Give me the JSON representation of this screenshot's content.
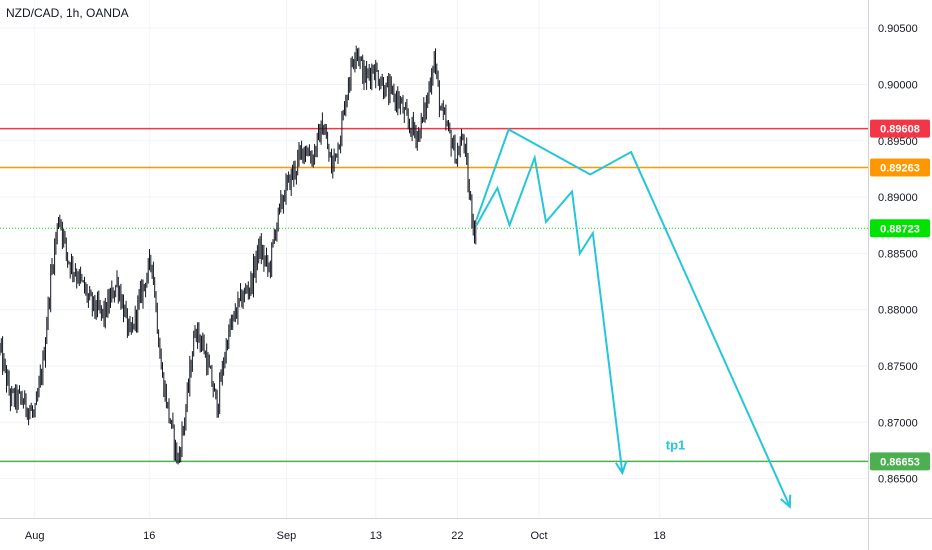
{
  "symbol_title": "NZD/CAD, 1h, OANDA",
  "chart_data": {
    "type": "candlestick",
    "title": "NZD/CAD, 1h, OANDA",
    "ylim": [
      0.8615,
      0.9075
    ],
    "y_ticks": [
      0.865,
      0.87,
      0.875,
      0.88,
      0.885,
      0.89,
      0.895,
      0.9,
      0.905
    ],
    "y_tick_labels": [
      "0.86500",
      "0.87000",
      "0.87500",
      "0.88000",
      "0.88500",
      "0.89000",
      "0.89500",
      "0.90000",
      "0.90500"
    ],
    "x_ticks": [
      {
        "label": "Aug",
        "frac": 0.04
      },
      {
        "label": "16",
        "frac": 0.172
      },
      {
        "label": "Sep",
        "frac": 0.33
      },
      {
        "label": "13",
        "frac": 0.433
      },
      {
        "label": "22",
        "frac": 0.527
      },
      {
        "label": "Oct",
        "frac": 0.621
      },
      {
        "label": "18",
        "frac": 0.76
      }
    ],
    "price_path": [
      [
        0.0,
        0.8765
      ],
      [
        0.012,
        0.8722
      ],
      [
        0.025,
        0.872
      ],
      [
        0.04,
        0.8705
      ],
      [
        0.05,
        0.8755
      ],
      [
        0.058,
        0.8825
      ],
      [
        0.068,
        0.8885
      ],
      [
        0.078,
        0.8845
      ],
      [
        0.09,
        0.883
      ],
      [
        0.105,
        0.8805
      ],
      [
        0.12,
        0.8795
      ],
      [
        0.135,
        0.8825
      ],
      [
        0.15,
        0.8775
      ],
      [
        0.163,
        0.8815
      ],
      [
        0.175,
        0.8845
      ],
      [
        0.186,
        0.8745
      ],
      [
        0.195,
        0.8705
      ],
      [
        0.205,
        0.8665
      ],
      [
        0.213,
        0.8705
      ],
      [
        0.225,
        0.8785
      ],
      [
        0.235,
        0.8765
      ],
      [
        0.25,
        0.8715
      ],
      [
        0.262,
        0.8775
      ],
      [
        0.275,
        0.8805
      ],
      [
        0.29,
        0.8825
      ],
      [
        0.298,
        0.8855
      ],
      [
        0.31,
        0.8835
      ],
      [
        0.318,
        0.8875
      ],
      [
        0.328,
        0.8905
      ],
      [
        0.34,
        0.8925
      ],
      [
        0.35,
        0.8945
      ],
      [
        0.36,
        0.8935
      ],
      [
        0.372,
        0.8965
      ],
      [
        0.382,
        0.8925
      ],
      [
        0.392,
        0.8955
      ],
      [
        0.402,
        0.9005
      ],
      [
        0.41,
        0.9035
      ],
      [
        0.42,
        0.9005
      ],
      [
        0.43,
        0.9015
      ],
      [
        0.445,
        0.8995
      ],
      [
        0.46,
        0.8985
      ],
      [
        0.47,
        0.8965
      ],
      [
        0.482,
        0.8955
      ],
      [
        0.492,
        0.8985
      ],
      [
        0.5,
        0.9025
      ],
      [
        0.508,
        0.8975
      ],
      [
        0.518,
        0.8955
      ],
      [
        0.526,
        0.8935
      ],
      [
        0.534,
        0.8955
      ],
      [
        0.54,
        0.8905
      ],
      [
        0.546,
        0.8873
      ],
      [
        0.549,
        0.8864
      ]
    ],
    "horizontal_levels": [
      {
        "value": 0.89608,
        "label": "0.89608",
        "color": "#f23645",
        "line_style": "solid"
      },
      {
        "value": 0.89263,
        "label": "0.89263",
        "color": "#ff9800",
        "line_style": "solid"
      },
      {
        "value": 0.88723,
        "label": "0.88723",
        "color": "#00e200",
        "line_style": "dotted"
      },
      {
        "value": 0.86653,
        "label": "0.86653",
        "color": "#4caf50",
        "line_style": "solid"
      }
    ],
    "projections": [
      {
        "color": "#26c6da",
        "points": [
          [
            0.549,
            0.8875
          ],
          [
            0.573,
            0.8908
          ],
          [
            0.587,
            0.8875
          ],
          [
            0.616,
            0.8935
          ],
          [
            0.629,
            0.8878
          ],
          [
            0.659,
            0.8905
          ],
          [
            0.668,
            0.885
          ],
          [
            0.683,
            0.8868
          ],
          [
            0.717,
            0.8655
          ]
        ],
        "arrow": true
      },
      {
        "color": "#26c6da",
        "points": [
          [
            0.549,
            0.888
          ],
          [
            0.586,
            0.896
          ],
          [
            0.68,
            0.892
          ],
          [
            0.727,
            0.894
          ],
          [
            0.91,
            0.8625
          ]
        ],
        "arrow": true
      }
    ],
    "annotations": [
      {
        "text": "tp1",
        "color": "#26c6da",
        "x": 0.767,
        "y": 0.8676
      }
    ],
    "colors": {
      "candle": "#131722",
      "grid": "#f0f3fa",
      "axis_text": "#131722",
      "projection": "#26c6da"
    }
  }
}
